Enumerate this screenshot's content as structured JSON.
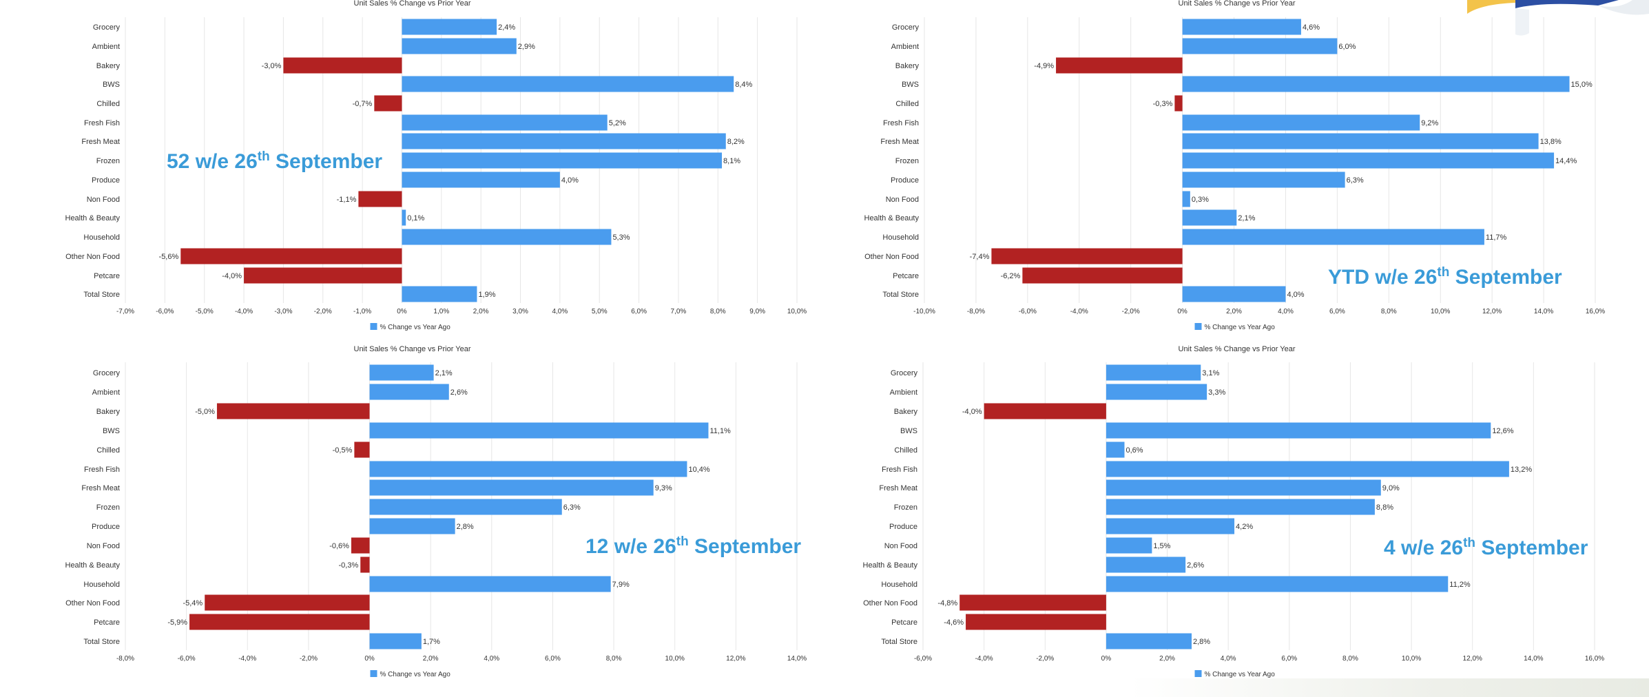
{
  "colors": {
    "positive": "#4a9cee",
    "negative": "#b22222",
    "overlay_text": "#3a9bd8",
    "grid": "#e6e6e6",
    "axis_text": "#333333",
    "category_text": "#333333"
  },
  "chart_data": [
    {
      "type": "bar",
      "orientation": "horizontal",
      "title": "Unit Sales % Change vs Prior Year",
      "overlay": {
        "main": "52 w/e 26",
        "sup": "th",
        "tail": " September"
      },
      "legend": "% Change vs Year Ago",
      "legend_position": "bottom",
      "grid": true,
      "xlim": [
        -7,
        10
      ],
      "xticks": [
        "-7,0%",
        "-6,0%",
        "-5,0%",
        "-4,0%",
        "-3,0%",
        "-2,0%",
        "-1,0%",
        "0%",
        "1,0%",
        "2,0%",
        "3,0%",
        "4,0%",
        "5,0%",
        "6,0%",
        "7,0%",
        "8,0%",
        "9,0%",
        "10,0%"
      ],
      "categories": [
        "Grocery",
        "Ambient",
        "Bakery",
        "BWS",
        "Chilled",
        "Fresh Fish",
        "Fresh Meat",
        "Frozen",
        "Produce",
        "Non Food",
        "Health & Beauty",
        "Household",
        "Other Non Food",
        "Petcare",
        "Total Store"
      ],
      "values": [
        2.4,
        2.9,
        -3.0,
        8.4,
        -0.7,
        5.2,
        8.2,
        8.1,
        4.0,
        -1.1,
        0.1,
        5.3,
        -5.6,
        -4.0,
        1.9
      ],
      "labels": [
        "2,4%",
        "2,9%",
        "-3,0%",
        "8,4%",
        "-0,7%",
        "5,2%",
        "8,2%",
        "8,1%",
        "4,0%",
        "-1,1%",
        "0,1%",
        "5,3%",
        "-5,6%",
        "-4,0%",
        "1,9%"
      ]
    },
    {
      "type": "bar",
      "orientation": "horizontal",
      "title": "Unit Sales % Change vs Prior Year",
      "overlay": {
        "main": "YTD w/e 26",
        "sup": "th",
        "tail": " September"
      },
      "legend": "% Change vs Year Ago",
      "legend_position": "bottom",
      "grid": true,
      "xlim": [
        -10,
        16
      ],
      "xticks": [
        "-10,0%",
        "-8,0%",
        "-6,0%",
        "-4,0%",
        "-2,0%",
        "0%",
        "2,0%",
        "4,0%",
        "6,0%",
        "8,0%",
        "10,0%",
        "12,0%",
        "14,0%",
        "16,0%"
      ],
      "categories": [
        "Grocery",
        "Ambient",
        "Bakery",
        "BWS",
        "Chilled",
        "Fresh Fish",
        "Fresh Meat",
        "Frozen",
        "Produce",
        "Non Food",
        "Health & Beauty",
        "Household",
        "Other Non Food",
        "Petcare",
        "Total Store"
      ],
      "values": [
        4.6,
        6.0,
        -4.9,
        15.0,
        -0.3,
        9.2,
        13.8,
        14.4,
        6.3,
        0.3,
        2.1,
        11.7,
        -7.4,
        -6.2,
        4.0
      ],
      "labels": [
        "4,6%",
        "6,0%",
        "-4,9%",
        "15,0%",
        "-0,3%",
        "9,2%",
        "13,8%",
        "14,4%",
        "6,3%",
        "0,3%",
        "2,1%",
        "11,7%",
        "-7,4%",
        "-6,2%",
        "4,0%"
      ]
    },
    {
      "type": "bar",
      "orientation": "horizontal",
      "title": "Unit Sales % Change vs Prior Year",
      "overlay": {
        "main": "12 w/e 26",
        "sup": "th",
        "tail": " September"
      },
      "legend": "% Change vs Year Ago",
      "legend_position": "bottom",
      "grid": true,
      "xlim": [
        -8,
        14
      ],
      "xticks": [
        "-8,0%",
        "-6,0%",
        "-4,0%",
        "-2,0%",
        "0%",
        "2,0%",
        "4,0%",
        "6,0%",
        "8,0%",
        "10,0%",
        "12,0%",
        "14,0%"
      ],
      "categories": [
        "Grocery",
        "Ambient",
        "Bakery",
        "BWS",
        "Chilled",
        "Fresh Fish",
        "Fresh Meat",
        "Frozen",
        "Produce",
        "Non Food",
        "Health & Beauty",
        "Household",
        "Other Non Food",
        "Petcare",
        "Total Store"
      ],
      "values": [
        2.1,
        2.6,
        -5.0,
        11.1,
        -0.5,
        10.4,
        9.3,
        6.3,
        2.8,
        -0.6,
        -0.3,
        7.9,
        -5.4,
        -5.9,
        1.7
      ],
      "labels": [
        "2,1%",
        "2,6%",
        "-5,0%",
        "11,1%",
        "-0,5%",
        "10,4%",
        "9,3%",
        "6,3%",
        "2,8%",
        "-0,6%",
        "-0,3%",
        "7,9%",
        "-5,4%",
        "-5,9%",
        "1,7%"
      ]
    },
    {
      "type": "bar",
      "orientation": "horizontal",
      "title": "Unit Sales % Change vs Prior Year",
      "overlay": {
        "main": "4 w/e 26",
        "sup": "th",
        "tail": " September"
      },
      "legend": "% Change vs Year Ago",
      "legend_position": "bottom",
      "grid": true,
      "xlim": [
        -6,
        16
      ],
      "xticks": [
        "-6,0%",
        "-4,0%",
        "-2,0%",
        "0%",
        "2,0%",
        "4,0%",
        "6,0%",
        "8,0%",
        "10,0%",
        "12,0%",
        "14,0%",
        "16,0%"
      ],
      "categories": [
        "Grocery",
        "Ambient",
        "Bakery",
        "BWS",
        "Chilled",
        "Fresh Fish",
        "Fresh Meat",
        "Frozen",
        "Produce",
        "Non Food",
        "Health & Beauty",
        "Household",
        "Other Non Food",
        "Petcare",
        "Total Store"
      ],
      "values": [
        3.1,
        3.3,
        -4.0,
        12.6,
        0.6,
        13.2,
        9.0,
        8.8,
        4.2,
        1.5,
        2.6,
        11.2,
        -4.8,
        -4.6,
        2.8
      ],
      "labels": [
        "3,1%",
        "3,3%",
        "-4,0%",
        "12,6%",
        "0,6%",
        "13,2%",
        "9,0%",
        "8,8%",
        "4,2%",
        "1,5%",
        "2,6%",
        "11,2%",
        "-4,8%",
        "-4,6%",
        "2,8%"
      ]
    }
  ]
}
